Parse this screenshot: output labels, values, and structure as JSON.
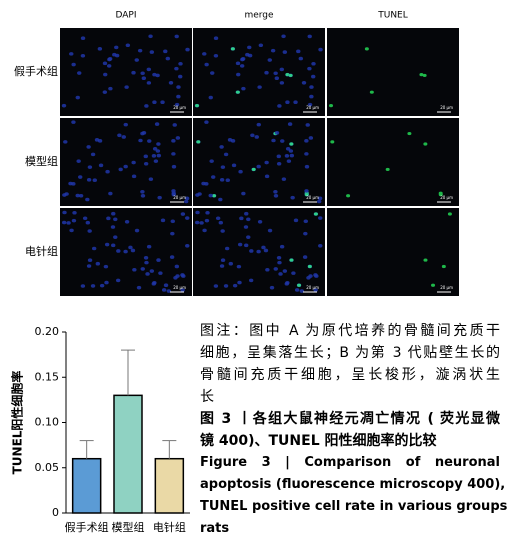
{
  "panels": {
    "columns": [
      "DAPI",
      "merge",
      "TUNEL"
    ],
    "rows": [
      "假手术组",
      "模型组",
      "电针组"
    ],
    "scale_bar": "20 μm"
  },
  "chart_data": {
    "type": "bar",
    "ylabel": "TUNEL阳性细胞率",
    "categories": [
      "假手术组",
      "模型组",
      "电针组"
    ],
    "values": [
      0.06,
      0.13,
      0.06
    ],
    "errors": [
      0.02,
      0.05,
      0.02
    ],
    "colors": [
      "#5b9bd5",
      "#8fd2c2",
      "#ead9a6"
    ],
    "ylim": [
      0,
      0.2
    ],
    "yticks": [
      0,
      0.05,
      {
        "value": 0.1,
        "label": "0.10"
      },
      0.15,
      {
        "value": 0.2,
        "label": "0.20"
      }
    ]
  },
  "caption": {
    "note_lines": [
      "图注：图中 A 为原代培养的骨髓间充质干",
      "细胞，呈集落生长；B 为第 3 代贴壁生长的",
      "骨髓间充质干细胞，呈长梭形，漩涡状生",
      "长"
    ],
    "title_zh_lines": [
      "图 3  丨各组大鼠神经元凋亡情况 ( 荧光显微",
      "镜 400)、TUNEL 阳性细胞率的比较"
    ],
    "title_en_lines": [
      "Figure 3  |  Comparison of neuronal",
      "apoptosis (fluorescence microscopy 400),",
      "TUNEL positive cell rate in various groups of",
      "rats"
    ]
  }
}
